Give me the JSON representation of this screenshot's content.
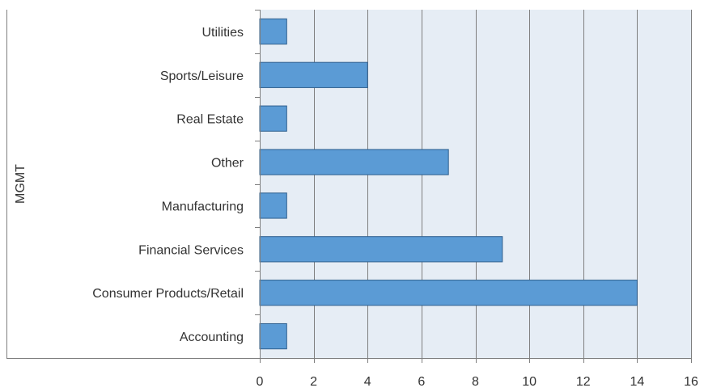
{
  "chart_data": {
    "type": "bar",
    "orientation": "horizontal",
    "title": "",
    "xlabel": "",
    "ylabel": "MGMT",
    "categories": [
      "Utilities",
      "Sports/Leisure",
      "Real Estate",
      "Other",
      "Manufacturing",
      "Financial Services",
      "Consumer Products/Retail",
      "Accounting"
    ],
    "values": [
      1,
      4,
      1,
      7,
      1,
      9,
      14,
      1
    ],
    "xlim": [
      0,
      16
    ],
    "xticks": [
      0,
      2,
      4,
      6,
      8,
      10,
      12,
      14,
      16
    ],
    "grid": "vertical",
    "legend": "none",
    "colors": {
      "bar_fill": "#5b9bd5",
      "bar_stroke": "#2e5f8e",
      "plot_background": "#e6edf5",
      "gridline": "#7f7f7f",
      "axis_line": "#7f7f7f",
      "text": "#333333"
    }
  }
}
